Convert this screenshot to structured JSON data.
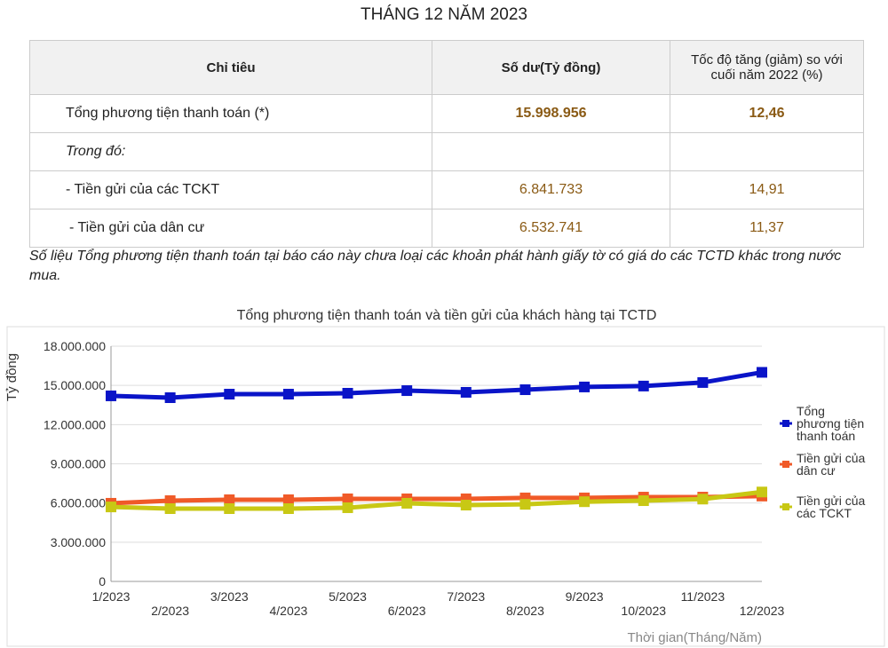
{
  "title": "THÁNG 12 NĂM 2023",
  "table": {
    "headers": [
      "Chỉ tiêu",
      "Số dư(Tỷ đồng)",
      "Tốc độ tăng (giảm) so với cuối năm 2022 (%)"
    ],
    "rows": [
      [
        "Tổng phương tiện thanh toán (*)",
        "15.998.956",
        "12,46"
      ],
      [
        "Trong đó:",
        "",
        ""
      ],
      [
        "- Tiền gửi của các TCKT",
        "6.841.733",
        "14,91"
      ],
      [
        "- Tiền gửi của dân cư",
        "6.532.741",
        "11,37"
      ]
    ]
  },
  "note": "Số liệu Tổng phương tiện thanh toán tại báo cáo này chưa loại các khoản phát hành giấy tờ có giá do các TCTD khác trong nước mua.",
  "chart_data": {
    "type": "line",
    "title": "Tổng phương tiện thanh toán và tiền gửi của khách hàng tại TCTD",
    "xlabel": "Thời gian(Tháng/Năm)",
    "ylabel": "Tỷ đồng",
    "ylim": [
      0,
      18000000
    ],
    "yticks": [
      "0",
      "3.000.000",
      "6.000.000",
      "9.000.000",
      "12.000.000",
      "15.000.000",
      "18.000.000"
    ],
    "categories": [
      "1/2023",
      "2/2023",
      "3/2023",
      "4/2023",
      "5/2023",
      "6/2023",
      "7/2023",
      "8/2023",
      "9/2023",
      "10/2023",
      "11/2023",
      "12/2023"
    ],
    "legend_position": "right",
    "grid": true,
    "series": [
      {
        "name": "Tổng phương tiện thanh toán",
        "color": "#0a14c8",
        "values": [
          14200000,
          14060000,
          14330000,
          14330000,
          14400000,
          14600000,
          14470000,
          14670000,
          14880000,
          14950000,
          15220000,
          15998956
        ]
      },
      {
        "name": "Tiền gửi của dân cư",
        "color": "#f05a28",
        "values": [
          5980000,
          6180000,
          6250000,
          6250000,
          6320000,
          6320000,
          6320000,
          6390000,
          6390000,
          6450000,
          6450000,
          6532741
        ]
      },
      {
        "name": "Tiền gửi của các TCKT",
        "color": "#c8c814",
        "values": [
          5700000,
          5570000,
          5570000,
          5570000,
          5640000,
          5980000,
          5840000,
          5900000,
          6100000,
          6180000,
          6300000,
          6841733
        ]
      }
    ]
  }
}
